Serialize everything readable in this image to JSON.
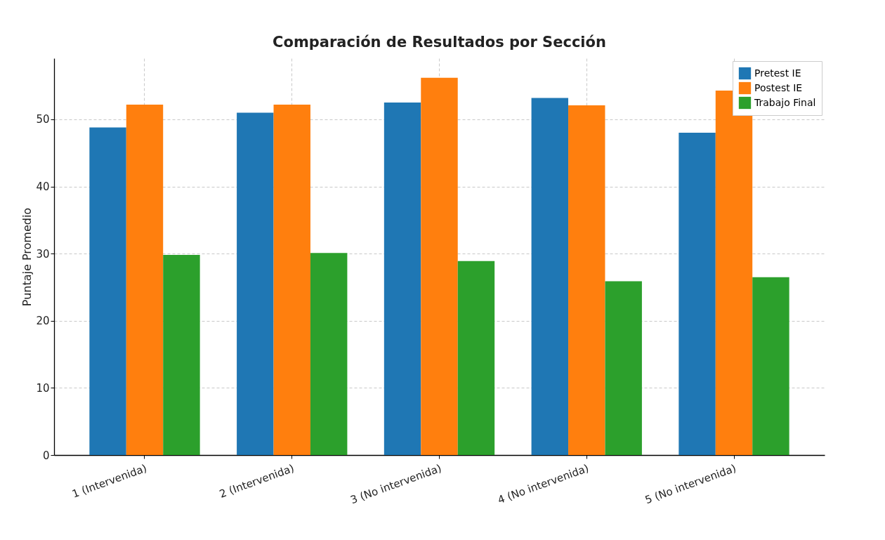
{
  "chart_data": {
    "type": "bar",
    "title": "Comparación de Resultados por Sección",
    "ylabel": "Puntaje Promedio",
    "categories": [
      "1 (Intervenida)",
      "2 (Intervenida)",
      "3 (No intervenida)",
      "4 (No intervenida)",
      "5 (No intervenida)"
    ],
    "series": [
      {
        "name": "Pretest IE",
        "color": "#1f77b4",
        "values": [
          48.8,
          51.0,
          52.5,
          53.2,
          48.0
        ]
      },
      {
        "name": "Postest IE",
        "color": "#ff7f0e",
        "values": [
          52.2,
          52.2,
          56.2,
          52.1,
          54.3
        ]
      },
      {
        "name": "Trabajo Final",
        "color": "#2ca02c",
        "values": [
          29.8,
          30.1,
          28.9,
          25.9,
          26.5
        ]
      }
    ],
    "ylim": [
      0,
      59.1
    ],
    "yticks": [
      0,
      10,
      20,
      30,
      40,
      50
    ],
    "grid": true,
    "legend": "top right"
  }
}
